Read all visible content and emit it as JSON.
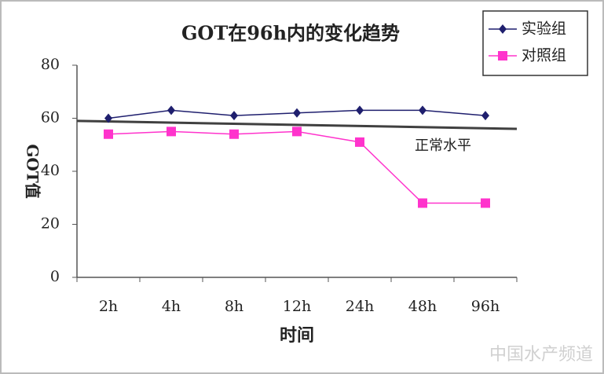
{
  "chart_data": {
    "type": "line",
    "title": "GOT在96h内的变化趋势",
    "xlabel": "时间",
    "ylabel": "GOT值",
    "categories": [
      "2h",
      "4h",
      "8h",
      "12h",
      "24h",
      "48h",
      "96h"
    ],
    "series": [
      {
        "name": "实验组",
        "color": "#1f1f6e",
        "marker": "diamond",
        "values": [
          60,
          63,
          61,
          62,
          63,
          63,
          61
        ]
      },
      {
        "name": "对照组",
        "color": "#ff33cc",
        "marker": "square",
        "values": [
          54,
          55,
          54,
          55,
          51,
          28,
          28
        ]
      }
    ],
    "reference_line": {
      "label": "正常水平",
      "color": "#404040",
      "values": [
        59,
        56
      ]
    },
    "ylim": [
      0,
      80
    ],
    "yticks": [
      0,
      20,
      40,
      60,
      80
    ],
    "legend": "top-right",
    "watermark": "中国水产频道"
  }
}
